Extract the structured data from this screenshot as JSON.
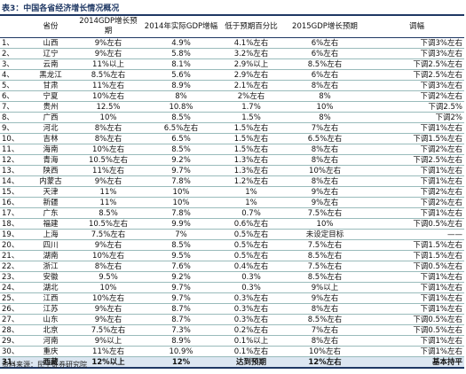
{
  "title": "表3：中国各省经济增长情况概况",
  "table": {
    "headers": [
      "省份",
      "2014GDP增长预期",
      "2014年实际GDP增幅",
      "低于预期百分比",
      "2015GDP增长预期",
      "调幅"
    ],
    "rows": [
      [
        "1、",
        "山西",
        "9%左右",
        "4.9%",
        "4.1%左右",
        "6%左右",
        "下调3%左右"
      ],
      [
        "2、",
        "辽宁",
        "9%左右",
        "5.8%",
        "3.2%左右",
        "6%左右",
        "下调3%左右"
      ],
      [
        "3、",
        "云南",
        "11%以上",
        "8.1%",
        "2.9%以上",
        "8.5%左右",
        "下调2.5%左右"
      ],
      [
        "4、",
        "黑龙江",
        "8.5%左右",
        "5.6%",
        "2.9%左右",
        "6%左右",
        "下调2.5%左右"
      ],
      [
        "5、",
        "甘肃",
        "11%左右",
        "8.9%",
        "2.1%左右",
        "8%左右",
        "下调3%左右"
      ],
      [
        "6、",
        "宁夏",
        "10%左右",
        "8%",
        "2%左右",
        "8%",
        "下调2%左右"
      ],
      [
        "7、",
        "贵州",
        "12.5%",
        "10.8%",
        "1.7%",
        "10%",
        "下调2.5%"
      ],
      [
        "8、",
        "广西",
        "10%",
        "8.5%",
        "1.5%",
        "8%",
        "下调2%"
      ],
      [
        "9、",
        "河北",
        "8%左右",
        "6.5%左右",
        "1.5%左右",
        "7%左右",
        "下调1%左右"
      ],
      [
        "10、",
        "吉林",
        "8%左右",
        "6.5%",
        "1.5%左右",
        "6.5%左右",
        "下调1.5%左右"
      ],
      [
        "11、",
        "海南",
        "10%左右",
        "8.5%",
        "1.5%左右",
        "8%左右",
        "下调2%左右"
      ],
      [
        "12、",
        "青海",
        "10.5%左右",
        "9.2%",
        "1.3%左右",
        "8%左右",
        "下调2.5%左右"
      ],
      [
        "13、",
        "陕西",
        "11%左右",
        "9.7%",
        "1.3%左右",
        "10%左右",
        "下调1%左右"
      ],
      [
        "14、",
        "内蒙古",
        "9%左右",
        "7.8%",
        "1.2%左右",
        "8%左右",
        "下调1%左右"
      ],
      [
        "15、",
        "天津",
        "11%",
        "10%",
        "1%",
        "9%左右",
        "下调2%左右"
      ],
      [
        "16、",
        "新疆",
        "11%",
        "10%",
        "1%",
        "9%左右",
        "下调2%左右"
      ],
      [
        "17、",
        "广东",
        "8.5%",
        "7.8%",
        "0.7%",
        "7.5%左右",
        "下调1%左右"
      ],
      [
        "18、",
        "福建",
        "10.5%左右",
        "9.9%",
        "0.6%左右",
        "10%",
        "下调0.5%左右"
      ],
      [
        "19、",
        "上海",
        "7.5%左右",
        "7%",
        "0.5%左右",
        "未设定目标",
        "——"
      ],
      [
        "20、",
        "四川",
        "9%左右",
        "8.5%",
        "0.5%左右",
        "7.5%左右",
        "下调1.5%左右"
      ],
      [
        "21、",
        "湖南",
        "10%左右",
        "9.5%",
        "0.5%左右",
        "8.5%左右",
        "下调1.5%左右"
      ],
      [
        "22、",
        "浙江",
        "8%左右",
        "7.6%",
        "0.4%左右",
        "7.5%左右",
        "下调0.5%左右"
      ],
      [
        "23、",
        "安徽",
        "9.5%",
        "9.2%",
        "0.3%",
        "8.5%左右",
        "下调1%左右"
      ],
      [
        "24、",
        "湖北",
        "10%",
        "9.7%",
        "0.3%",
        "9%以上",
        "下调1%左右"
      ],
      [
        "25、",
        "江西",
        "10%左右",
        "9.7%",
        "0.3%左右",
        "9%左右",
        "下调1%左右"
      ],
      [
        "26、",
        "江苏",
        "9%左右",
        "8.7%",
        "0.3%左右",
        "8%左右",
        "下调1%左右"
      ],
      [
        "27、",
        "山东",
        "9%左右",
        "8.7%",
        "0.3%左右",
        "8.5%左右",
        "下调0.5%左右"
      ],
      [
        "28、",
        "北京",
        "7.5%左右",
        "7.3%",
        "0.2%左右",
        "7%左右",
        "下调0.5%左右"
      ],
      [
        "29、",
        "河南",
        "9%以上",
        "8.9%",
        "0.1%以上",
        "8%左右",
        "下调1%左右"
      ],
      [
        "30、",
        "重庆",
        "11%左右",
        "10.9%",
        "0.1%左右",
        "10%左右",
        "下调1%左右"
      ],
      [
        "31、",
        "西藏",
        "12%以上",
        "12%",
        "达到预期",
        "12%左右",
        "基本持平"
      ]
    ]
  },
  "source": "资料来源：民生证券研究院"
}
